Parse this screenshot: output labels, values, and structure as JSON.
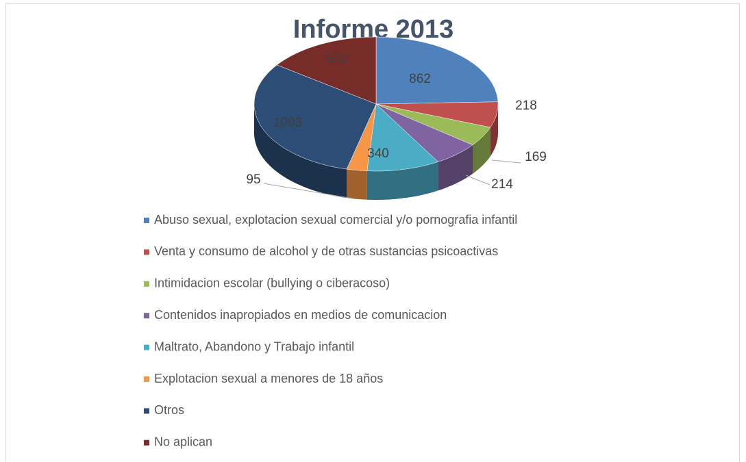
{
  "chart_data": {
    "type": "pie3d",
    "title": "Informe 2013",
    "categories": [
      "Abuso sexual, explotacion sexual comercial y/o pornografia infantil",
      "Venta y consumo de alcohol y de otras sustancias psicoactivas",
      "Intimidacion escolar (bullying o ciberacoso)",
      "Contenidos inapropiados en medios de comunicacion",
      "Maltrato, Abandono y Trabajo infantil",
      "Explotacion sexual a menores de 18 años",
      "Otros",
      "No aplican"
    ],
    "values": [
      862,
      218,
      169,
      214,
      340,
      95,
      1093,
      532
    ],
    "colors": [
      "#4f81bd",
      "#c0504d",
      "#9bbb59",
      "#8064a2",
      "#4bacc6",
      "#f79646",
      "#2c4d75",
      "#772c2a"
    ],
    "legend": "bottom"
  }
}
